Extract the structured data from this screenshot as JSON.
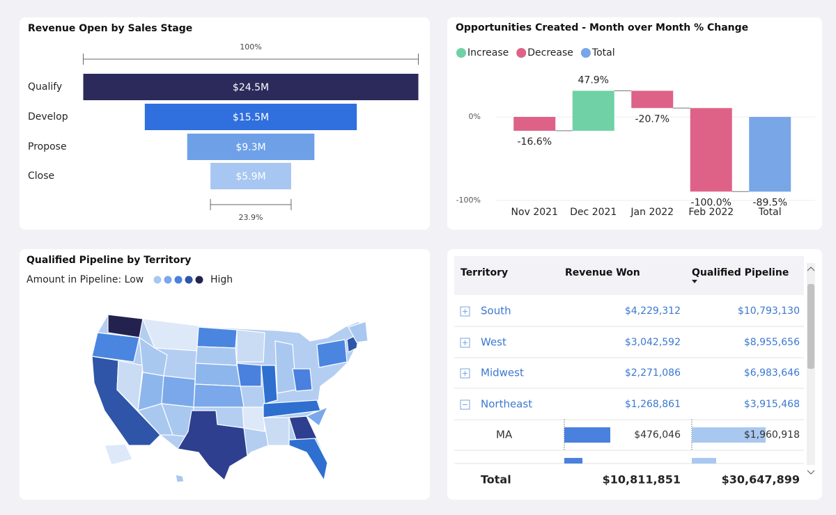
{
  "chart_data": [
    {
      "type": "funnel",
      "title": "Revenue Open by Sales Stage",
      "categories": [
        "Qualify",
        "Develop",
        "Propose",
        "Close"
      ],
      "values": [
        24.5,
        15.5,
        9.3,
        5.9
      ],
      "value_labels": [
        "$24.5M",
        "$15.5M",
        "$9.3M",
        "$5.9M"
      ],
      "colors": [
        "#2b2a5a",
        "#2f6fde",
        "#6ea0e8",
        "#a7c6f2"
      ],
      "top_annotation": "100%",
      "bottom_annotation": "23.9%"
    },
    {
      "type": "waterfall",
      "title": "Opportunities Created - Month over Month % Change",
      "categories": [
        "Nov 2021",
        "Dec 2021",
        "Jan 2022",
        "Feb 2022",
        "Total"
      ],
      "values": [
        -16.6,
        47.9,
        -20.7,
        -100.0,
        -89.5
      ],
      "value_labels": [
        "-16.6%",
        "47.9%",
        "-20.7%",
        "-100.0%",
        "-89.5%"
      ],
      "measures": [
        "relative",
        "relative",
        "relative",
        "relative",
        "total"
      ],
      "legend": [
        {
          "name": "Increase",
          "color": "#6fd1a5"
        },
        {
          "name": "Decrease",
          "color": "#de6287"
        },
        {
          "name": "Total",
          "color": "#78a6e6"
        }
      ],
      "ylim": [
        -105,
        55
      ],
      "yticks": [
        {
          "value": 0,
          "label": "0%"
        },
        {
          "value": -100,
          "label": "-100%"
        }
      ],
      "grid": true
    }
  ],
  "map": {
    "title": "Qualified Pipeline by Territory",
    "legend_low": "Amount in Pipeline: Low",
    "legend_high": "High",
    "legend_colors": [
      "#a9c8f0",
      "#7aa8ea",
      "#4a80de",
      "#2e55a8",
      "#23224f"
    ]
  },
  "table": {
    "columns": [
      "Territory",
      "Revenue Won",
      "Qualified Pipeline"
    ],
    "rows": [
      {
        "cells": [
          "South",
          "$4,229,312",
          "$10,793,130"
        ],
        "expanded": false
      },
      {
        "cells": [
          "West",
          "$3,042,592",
          "$8,955,656"
        ],
        "expanded": false
      },
      {
        "cells": [
          "Midwest",
          "$2,271,086",
          "$6,983,646"
        ],
        "expanded": false
      },
      {
        "cells": [
          "Northeast",
          "$1,268,861",
          "$3,915,468"
        ],
        "expanded": true
      },
      {
        "cells": [
          "MA",
          "$476,046",
          "$1,960,918"
        ],
        "level": 1
      }
    ],
    "total": [
      "Total",
      "$10,811,851",
      "$30,647,899"
    ]
  }
}
